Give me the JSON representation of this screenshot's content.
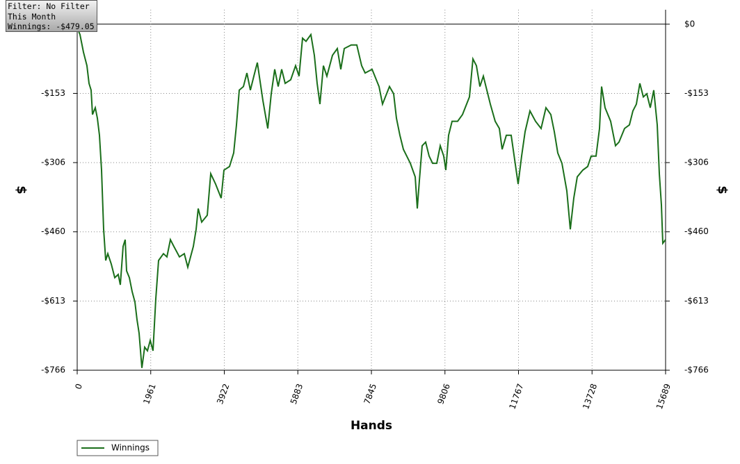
{
  "chart_data": {
    "type": "line",
    "info_box": [
      "Filter: No Filter",
      "This Month",
      "Winnings: -$479.05"
    ],
    "x_label": "Hands",
    "y_label": "$",
    "y2_label": "$",
    "x": [
      0,
      74,
      167,
      260,
      315,
      371,
      408,
      482,
      538,
      593,
      649,
      705,
      760,
      816,
      909,
      1001,
      1094,
      1150,
      1224,
      1280,
      1317,
      1391,
      1465,
      1539,
      1595,
      1650,
      1725,
      1799,
      1873,
      1947,
      2021,
      2096,
      2170,
      2300,
      2392,
      2485,
      2578,
      2726,
      2856,
      2949,
      3097,
      3171,
      3227,
      3320,
      3468,
      3561,
      3690,
      3839,
      3913,
      4061,
      4173,
      4247,
      4321,
      4432,
      4525,
      4618,
      4710,
      4803,
      4952,
      5081,
      5174,
      5267,
      5360,
      5452,
      5545,
      5693,
      5823,
      5916,
      6009,
      6101,
      6231,
      6324,
      6398,
      6472,
      6565,
      6658,
      6806,
      6936,
      7029,
      7121,
      7307,
      7455,
      7585,
      7678,
      7863,
      8049,
      8141,
      8327,
      8438,
      8512,
      8605,
      8698,
      8883,
      9013,
      9069,
      9124,
      9198,
      9291,
      9384,
      9477,
      9588,
      9681,
      9773,
      9829,
      9903,
      9996,
      10144,
      10274,
      10459,
      10552,
      10645,
      10738,
      10830,
      10923,
      11016,
      11146,
      11257,
      11331,
      11442,
      11572,
      11665,
      11758,
      11851,
      11943,
      12073,
      12221,
      12370,
      12499,
      12629,
      12722,
      12815,
      12926,
      13056,
      13149,
      13241,
      13334,
      13482,
      13612,
      13705,
      13835,
      13927,
      13983,
      14076,
      14224,
      14354,
      14447,
      14595,
      14725,
      14818,
      14910,
      15003,
      15096,
      15189,
      15281,
      15374,
      15467,
      15522,
      15578,
      15615,
      15689
    ],
    "series": [
      {
        "name": "Winnings",
        "color": "#1a6e1a",
        "values": [
          -8,
          -23,
          -62,
          -92,
          -131,
          -146,
          -200,
          -185,
          -208,
          -246,
          -323,
          -454,
          -523,
          -508,
          -531,
          -561,
          -554,
          -577,
          -492,
          -477,
          -546,
          -561,
          -592,
          -615,
          -654,
          -684,
          -761,
          -715,
          -723,
          -700,
          -723,
          -608,
          -523,
          -508,
          -515,
          -477,
          -492,
          -515,
          -508,
          -538,
          -492,
          -454,
          -408,
          -438,
          -423,
          -331,
          -354,
          -385,
          -323,
          -315,
          -285,
          -223,
          -146,
          -138,
          -108,
          -146,
          -115,
          -85,
          -169,
          -231,
          -154,
          -100,
          -138,
          -100,
          -131,
          -123,
          -92,
          -115,
          -31,
          -38,
          -23,
          -69,
          -131,
          -177,
          -92,
          -115,
          -69,
          -54,
          -100,
          -54,
          -46,
          -46,
          -92,
          -108,
          -100,
          -138,
          -177,
          -138,
          -154,
          -208,
          -246,
          -277,
          -308,
          -338,
          -408,
          -346,
          -269,
          -261,
          -292,
          -308,
          -308,
          -269,
          -292,
          -323,
          -246,
          -215,
          -215,
          -200,
          -161,
          -77,
          -92,
          -138,
          -115,
          -146,
          -177,
          -215,
          -231,
          -277,
          -246,
          -246,
          -300,
          -354,
          -292,
          -238,
          -192,
          -215,
          -231,
          -185,
          -200,
          -238,
          -285,
          -308,
          -369,
          -454,
          -385,
          -338,
          -323,
          -315,
          -292,
          -292,
          -231,
          -138,
          -185,
          -215,
          -269,
          -261,
          -231,
          -223,
          -192,
          -177,
          -131,
          -161,
          -154,
          -185,
          -146,
          -223,
          -331,
          -400,
          -485,
          -477
        ]
      }
    ],
    "xlim": [
      0,
      15689
    ],
    "xticks": [
      0,
      1961,
      3922,
      5883,
      7845,
      9806,
      11767,
      13728,
      15689
    ],
    "ylim": [
      -766,
      32
    ],
    "yticks": [
      {
        "value": 0,
        "label": "$0"
      },
      {
        "value": -153.2,
        "label": "-$153"
      },
      {
        "value": -306.4,
        "label": "-$306"
      },
      {
        "value": -459.6,
        "label": "-$460"
      },
      {
        "value": -612.8,
        "label": "-$613"
      },
      {
        "value": -766,
        "label": "-$766"
      }
    ],
    "grid": true,
    "legend": "bottom-left"
  }
}
